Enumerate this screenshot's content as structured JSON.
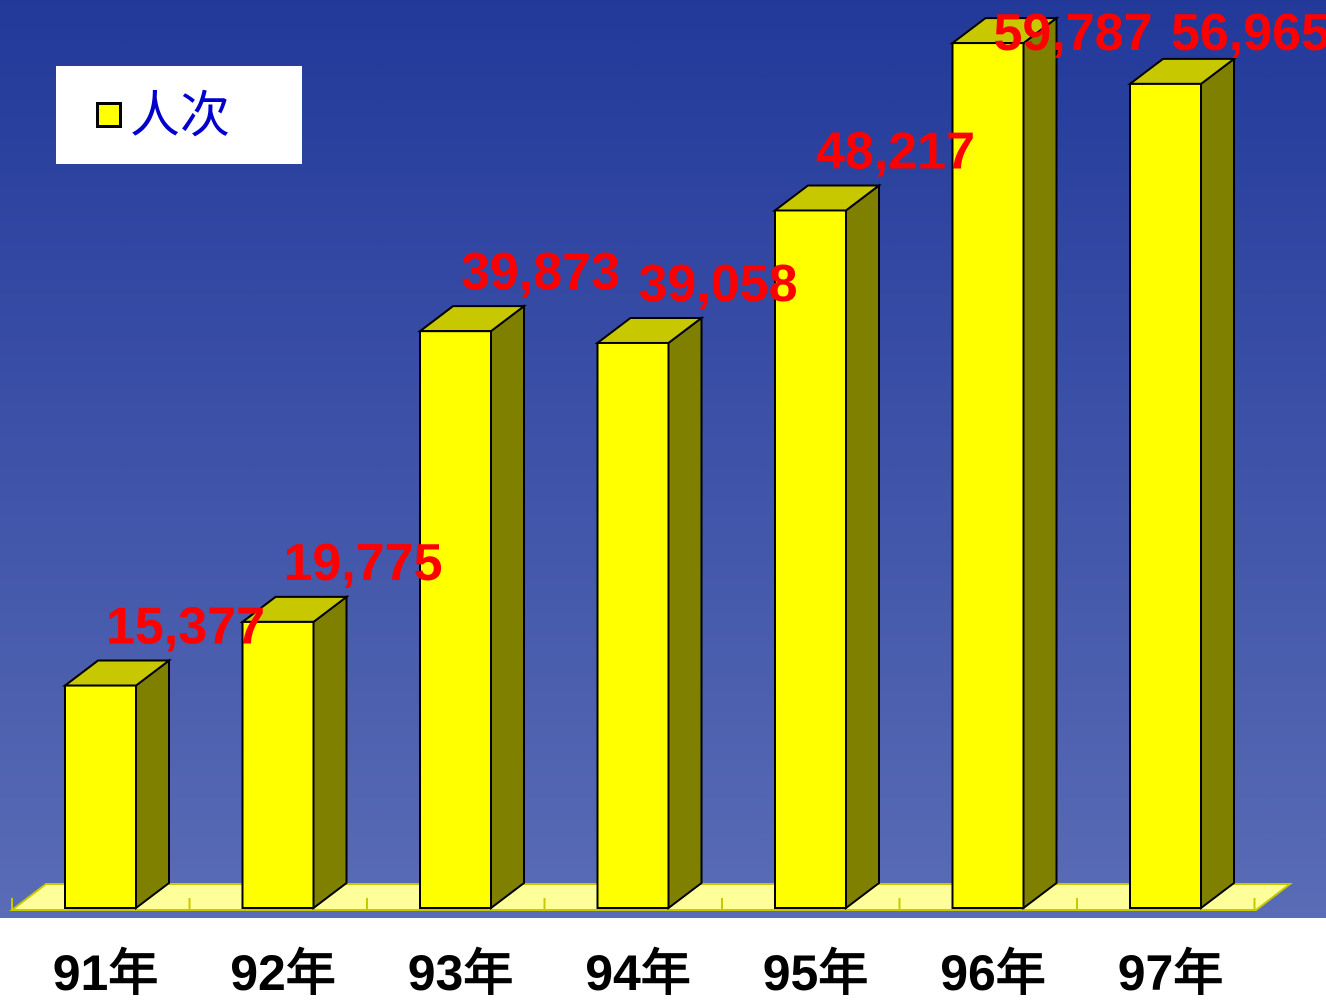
{
  "chart_data": {
    "type": "bar",
    "categories": [
      "91年",
      "92年",
      "93年",
      "94年",
      "95年",
      "96年",
      "97年"
    ],
    "values": [
      15377,
      19775,
      39873,
      39058,
      48217,
      59787,
      56965
    ],
    "value_labels": [
      "15,377",
      "19,775",
      "39,873",
      "39,058",
      "48,217",
      "59,787",
      "56,965"
    ],
    "legend": {
      "label": "人次",
      "placement": "top-left"
    },
    "title": "",
    "xlabel": "",
    "ylabel": "",
    "ylim": [
      0,
      60000
    ],
    "grid": false,
    "three_d": true
  },
  "colors": {
    "background_top": "#22399a",
    "background_bottom": "#5a6cb6",
    "bar_front": "#ffff00",
    "bar_top": "#c8c800",
    "bar_side": "#808000",
    "floor": "#ffff99",
    "value_label": "#ff0000",
    "category_label": "#000000",
    "legend_text": "#0000cc"
  }
}
